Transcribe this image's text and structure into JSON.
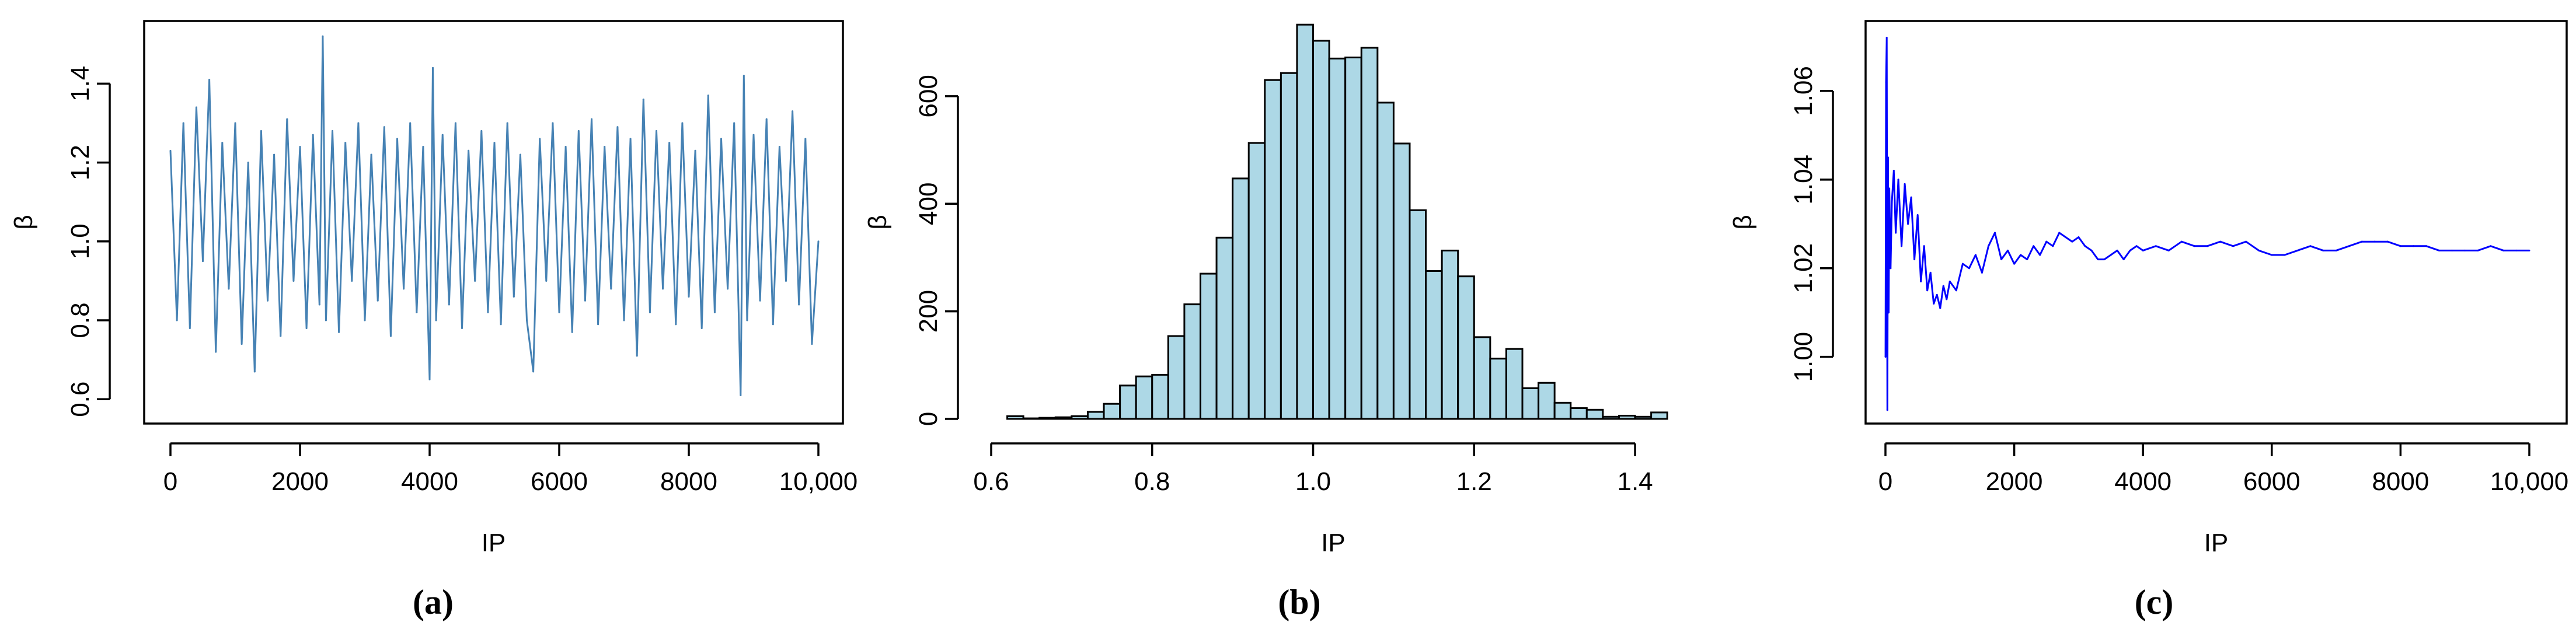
{
  "chart_data": [
    {
      "panel_label": "(a)",
      "type": "line",
      "title": "",
      "xlabel": "IP",
      "ylabel": "β",
      "xlim": [
        0,
        10000
      ],
      "ylim": [
        0.55,
        1.55
      ],
      "xticks": [
        0,
        2000,
        4000,
        6000,
        8000,
        10000
      ],
      "xtick_labels": [
        "0",
        "2000",
        "4000",
        "6000",
        "8000",
        "10,000"
      ],
      "yticks": [
        0.6,
        0.8,
        1.0,
        1.2,
        1.4
      ],
      "ytick_labels": [
        "0.6",
        "0.8",
        "1.0",
        "1.2",
        "1.4"
      ],
      "line_color": "#4682b4",
      "grid": false,
      "series": [
        {
          "x": [
            0,
            100,
            200,
            300,
            400,
            500,
            600,
            700,
            800,
            900,
            1000,
            1100,
            1200,
            1300,
            1400,
            1500,
            1600,
            1700,
            1800,
            1900,
            2000,
            2100,
            2200,
            2300,
            2350,
            2400,
            2500,
            2600,
            2700,
            2800,
            2900,
            3000,
            3100,
            3200,
            3300,
            3400,
            3500,
            3600,
            3700,
            3800,
            3900,
            4000,
            4050,
            4100,
            4200,
            4300,
            4400,
            4500,
            4600,
            4700,
            4800,
            4900,
            5000,
            5100,
            5200,
            5300,
            5400,
            5500,
            5600,
            5700,
            5800,
            5900,
            6000,
            6100,
            6200,
            6300,
            6400,
            6500,
            6600,
            6700,
            6800,
            6900,
            7000,
            7100,
            7200,
            7300,
            7400,
            7500,
            7600,
            7700,
            7800,
            7900,
            8000,
            8100,
            8200,
            8300,
            8400,
            8500,
            8600,
            8700,
            8800,
            8850,
            8900,
            9000,
            9100,
            9200,
            9300,
            9400,
            9500,
            9600,
            9700,
            9800,
            9900,
            10000
          ],
          "y": [
            1.23,
            0.8,
            1.3,
            0.78,
            1.34,
            0.95,
            1.41,
            0.72,
            1.25,
            0.88,
            1.3,
            0.74,
            1.2,
            0.67,
            1.28,
            0.85,
            1.22,
            0.76,
            1.31,
            0.9,
            1.24,
            0.78,
            1.27,
            0.84,
            1.52,
            0.8,
            1.28,
            0.77,
            1.25,
            0.9,
            1.3,
            0.8,
            1.22,
            0.85,
            1.29,
            0.76,
            1.26,
            0.88,
            1.3,
            0.82,
            1.24,
            0.65,
            1.44,
            0.8,
            1.27,
            0.84,
            1.3,
            0.78,
            1.23,
            0.9,
            1.28,
            0.82,
            1.25,
            0.79,
            1.3,
            0.86,
            1.22,
            0.8,
            0.67,
            1.26,
            0.9,
            1.3,
            0.82,
            1.24,
            0.77,
            1.28,
            0.85,
            1.31,
            0.79,
            1.24,
            0.88,
            1.29,
            0.8,
            1.26,
            0.71,
            1.36,
            0.82,
            1.28,
            0.88,
            1.25,
            0.79,
            1.3,
            0.86,
            1.23,
            0.78,
            1.37,
            0.82,
            1.26,
            0.88,
            1.3,
            0.61,
            1.42,
            0.8,
            1.27,
            0.85,
            1.31,
            0.79,
            1.24,
            0.9,
            1.33,
            0.84,
            1.26,
            0.74,
            1.0
          ]
        }
      ]
    },
    {
      "panel_label": "(b)",
      "type": "bar",
      "title": "",
      "xlabel": "IP",
      "ylabel": "β",
      "xlim": [
        0.6,
        1.45
      ],
      "ylim": [
        0,
        730
      ],
      "xticks": [
        0.6,
        0.8,
        1.0,
        1.2,
        1.4
      ],
      "xtick_labels": [
        "0.6",
        "0.8",
        "1.0",
        "1.2",
        "1.4"
      ],
      "yticks": [
        0,
        200,
        400,
        600
      ],
      "ytick_labels": [
        "0",
        "200",
        "400",
        "600"
      ],
      "bar_color": "#add8e6",
      "grid": false,
      "bin_edges": [
        0.62,
        0.64,
        0.66,
        0.68,
        0.7,
        0.72,
        0.74,
        0.76,
        0.78,
        0.8,
        0.82,
        0.84,
        0.86,
        0.88,
        0.9,
        0.92,
        0.94,
        0.96,
        0.98,
        1.0,
        1.02,
        1.04,
        1.06,
        1.08,
        1.1,
        1.12,
        1.14,
        1.16,
        1.18,
        1.2,
        1.22,
        1.24,
        1.26,
        1.28,
        1.3,
        1.32,
        1.34,
        1.36,
        1.38,
        1.4,
        1.42,
        1.44
      ],
      "values": [
        5,
        1,
        2,
        3,
        5,
        13,
        28,
        62,
        79,
        82,
        154,
        213,
        270,
        337,
        447,
        513,
        630,
        643,
        733,
        703,
        670,
        672,
        690,
        588,
        512,
        388,
        275,
        313,
        265,
        152,
        112,
        130,
        57,
        67,
        30,
        20,
        17,
        4,
        6,
        4,
        12
      ]
    },
    {
      "panel_label": "(c)",
      "type": "line",
      "title": "",
      "xlabel": "IP",
      "ylabel": "β",
      "xlim": [
        0,
        10000
      ],
      "ylim": [
        0.986,
        1.075
      ],
      "xticks": [
        0,
        2000,
        4000,
        6000,
        8000,
        10000
      ],
      "xtick_labels": [
        "0",
        "2000",
        "4000",
        "6000",
        "8000",
        "10,000"
      ],
      "yticks": [
        1.0,
        1.02,
        1.04,
        1.06
      ],
      "ytick_labels": [
        "1.00",
        "1.02",
        "1.04",
        "1.06"
      ],
      "line_color": "#0000ff",
      "grid": false,
      "series": [
        {
          "x": [
            1,
            10,
            20,
            30,
            40,
            50,
            60,
            80,
            100,
            130,
            160,
            200,
            250,
            300,
            350,
            400,
            450,
            500,
            550,
            600,
            650,
            700,
            750,
            800,
            850,
            900,
            950,
            1000,
            1100,
            1200,
            1300,
            1400,
            1500,
            1600,
            1700,
            1800,
            1900,
            2000,
            2100,
            2200,
            2300,
            2400,
            2500,
            2600,
            2700,
            2800,
            2900,
            3000,
            3100,
            3200,
            3300,
            3400,
            3500,
            3600,
            3700,
            3800,
            3900,
            4000,
            4200,
            4400,
            4600,
            4800,
            5000,
            5200,
            5400,
            5600,
            5800,
            6000,
            6200,
            6400,
            6600,
            6800,
            7000,
            7200,
            7400,
            7600,
            7800,
            8000,
            8200,
            8400,
            8600,
            8800,
            9000,
            9200,
            9400,
            9600,
            9800,
            10000
          ],
          "y": [
            1.0,
            1.062,
            1.072,
            0.988,
            1.045,
            1.01,
            1.038,
            1.02,
            1.035,
            1.042,
            1.028,
            1.04,
            1.025,
            1.039,
            1.03,
            1.036,
            1.022,
            1.032,
            1.017,
            1.025,
            1.015,
            1.019,
            1.012,
            1.014,
            1.011,
            1.016,
            1.013,
            1.017,
            1.015,
            1.021,
            1.02,
            1.023,
            1.019,
            1.025,
            1.028,
            1.022,
            1.024,
            1.021,
            1.023,
            1.022,
            1.025,
            1.023,
            1.026,
            1.025,
            1.028,
            1.027,
            1.026,
            1.027,
            1.025,
            1.024,
            1.022,
            1.022,
            1.023,
            1.024,
            1.022,
            1.024,
            1.025,
            1.024,
            1.025,
            1.024,
            1.026,
            1.025,
            1.025,
            1.026,
            1.025,
            1.026,
            1.024,
            1.023,
            1.023,
            1.024,
            1.025,
            1.024,
            1.024,
            1.025,
            1.026,
            1.026,
            1.026,
            1.025,
            1.025,
            1.025,
            1.024,
            1.024,
            1.024,
            1.024,
            1.025,
            1.024,
            1.024,
            1.024
          ]
        }
      ]
    }
  ]
}
